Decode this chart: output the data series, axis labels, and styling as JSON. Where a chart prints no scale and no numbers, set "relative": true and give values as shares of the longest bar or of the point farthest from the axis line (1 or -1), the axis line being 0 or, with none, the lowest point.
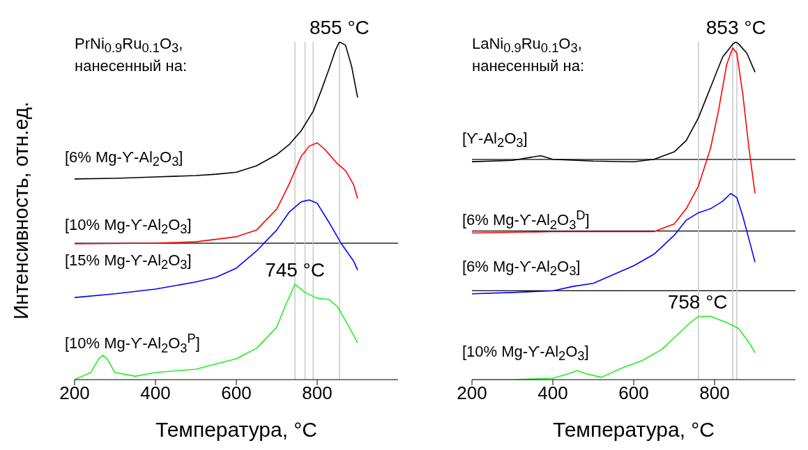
{
  "chart_data": [
    {
      "type": "line",
      "relative": true,
      "xlabel": "Температура, °C",
      "ylabel": "Интенсивность, отн.ед.",
      "xlim": [
        200,
        1000
      ],
      "xticks": [
        200,
        400,
        600,
        800
      ],
      "grid": false,
      "series": [
        {
          "name": "[6% Mg-ϒ-Al$_{2}$O$_{3}$]",
          "color": "#000000",
          "x": [
            200,
            300,
            400,
            500,
            550,
            600,
            650,
            700,
            730,
            760,
            790,
            810,
            830,
            845,
            855,
            870,
            885,
            900
          ],
          "values": [
            0.594,
            0.596,
            0.6,
            0.604,
            0.608,
            0.614,
            0.633,
            0.666,
            0.695,
            0.736,
            0.794,
            0.856,
            0.922,
            0.975,
            1,
            0.99,
            0.928,
            0.835
          ]
        },
        {
          "name": "[10% Mg-ϒ-Al$_{2}$O$_{3}$]",
          "color": "#ff0000",
          "x": [
            200,
            400,
            500,
            600,
            650,
            700,
            730,
            760,
            780,
            800,
            820,
            850,
            870,
            890,
            900
          ],
          "values": [
            0.402,
            0.404,
            0.408,
            0.423,
            0.443,
            0.505,
            0.577,
            0.66,
            0.691,
            0.701,
            0.68,
            0.639,
            0.619,
            0.577,
            0.536
          ]
        },
        {
          "name": "[15% Mg-ϒ-Al$_{2}$O$_{3}$]",
          "color": "#0000ff",
          "x": [
            200,
            300,
            400,
            500,
            550,
            600,
            650,
            700,
            730,
            760,
            780,
            800,
            830,
            860,
            890,
            900
          ],
          "values": [
            0.243,
            0.254,
            0.268,
            0.289,
            0.303,
            0.33,
            0.381,
            0.443,
            0.495,
            0.526,
            0.532,
            0.522,
            0.464,
            0.402,
            0.351,
            0.324
          ]
        },
        {
          "name": "[10% Mg-ϒ-Al$_{2}$O$_{3}$$^{P}$]",
          "color": "#22ee22",
          "x": [
            200,
            240,
            260,
            270,
            280,
            300,
            350,
            400,
            500,
            600,
            650,
            700,
            720,
            745,
            770,
            800,
            830,
            850,
            870,
            900
          ],
          "values": [
            0,
            0.021,
            0.062,
            0.072,
            0.062,
            0.021,
            0.01,
            0.021,
            0.031,
            0.062,
            0.093,
            0.155,
            0.216,
            0.282,
            0.258,
            0.241,
            0.237,
            0.216,
            0.175,
            0.109
          ]
        }
      ],
      "ref_lines": [
        {
          "axis": "y",
          "value": 0.404,
          "color": "#000000"
        },
        {
          "axis": "x",
          "value": 745,
          "color": "#c8c8c8"
        },
        {
          "axis": "x",
          "value": 770,
          "color": "#c8c8c8"
        },
        {
          "axis": "x",
          "value": 790,
          "color": "#c8c8c8"
        },
        {
          "axis": "x",
          "value": 855,
          "color": "#c8c8c8"
        }
      ],
      "annotations": [
        "PrNi$_{0.9}$Ru$_{0.1}$O$_{3}$, нанесенный на:",
        {
          "text": "855 °C",
          "x": 855,
          "y": 1
        },
        {
          "text": "745 °C",
          "x": 745,
          "y": 0.282
        }
      ]
    },
    {
      "type": "line",
      "relative": true,
      "xlabel": "Температура, °C",
      "xlim": [
        200,
        1000
      ],
      "xticks": [
        200,
        400,
        600,
        800
      ],
      "grid": false,
      "series": [
        {
          "name": "[ϒ-Al$_{2}$O$_{3}$]",
          "color": "#000000",
          "x": [
            200,
            300,
            370,
            400,
            500,
            600,
            650,
            700,
            730,
            760,
            790,
            820,
            845,
            853,
            860,
            880,
            900
          ],
          "values": [
            0.645,
            0.649,
            0.663,
            0.652,
            0.647,
            0.645,
            0.652,
            0.674,
            0.708,
            0.775,
            0.865,
            0.955,
            0.993,
            1,
            0.993,
            0.966,
            0.91
          ]
        },
        {
          "name": "[6% Mg-ϒ-Al$_{2}$O$_{3}$$^{D}$]",
          "color": "#ff0000",
          "x": [
            200,
            400,
            600,
            650,
            700,
            730,
            760,
            790,
            810,
            830,
            845,
            855,
            870,
            885,
            900
          ],
          "values": [
            0.434,
            0.438,
            0.438,
            0.438,
            0.461,
            0.506,
            0.573,
            0.685,
            0.798,
            0.933,
            0.982,
            0.966,
            0.843,
            0.685,
            0.551
          ]
        },
        {
          "name": "[6% Mg-ϒ-Al$_{2}$O$_{3}$]",
          "color": "#0000ff",
          "x": [
            200,
            300,
            400,
            450,
            500,
            600,
            650,
            700,
            730,
            760,
            790,
            820,
            840,
            855,
            870,
            890,
            900
          ],
          "values": [
            0.254,
            0.258,
            0.263,
            0.276,
            0.285,
            0.337,
            0.371,
            0.427,
            0.472,
            0.494,
            0.506,
            0.528,
            0.551,
            0.539,
            0.483,
            0.393,
            0.348
          ]
        },
        {
          "name": "[10% Mg-ϒ-Al$_{2}$O$_{3}$]",
          "color": "#22ee22",
          "x": [
            200,
            300,
            400,
            440,
            460,
            480,
            520,
            570,
            620,
            670,
            710,
            740,
            760,
            790,
            830,
            860,
            890,
            900
          ],
          "values": [
            0,
            0,
            0.004,
            0.018,
            0.027,
            0.018,
            0.007,
            0.034,
            0.056,
            0.09,
            0.135,
            0.169,
            0.187,
            0.187,
            0.169,
            0.151,
            0.101,
            0.079
          ]
        }
      ],
      "ref_lines": [
        {
          "axis": "y",
          "value": 0.652,
          "color": "#000000"
        },
        {
          "axis": "y",
          "value": 0.44,
          "color": "#000000"
        },
        {
          "axis": "y",
          "value": 0.263,
          "color": "#000000"
        },
        {
          "axis": "x",
          "value": 760,
          "color": "#c8c8c8"
        },
        {
          "axis": "x",
          "value": 845,
          "color": "#c8c8c8"
        },
        {
          "axis": "x",
          "value": 855,
          "color": "#c8c8c8"
        }
      ],
      "annotations": [
        "LaNi$_{0.9}$Ru$_{0.1}$O$_{3}$, нанесенный на:",
        {
          "text": "853 °C",
          "x": 853,
          "y": 1
        },
        {
          "text": "758 °C",
          "x": 758,
          "y": 0.187
        }
      ]
    }
  ]
}
